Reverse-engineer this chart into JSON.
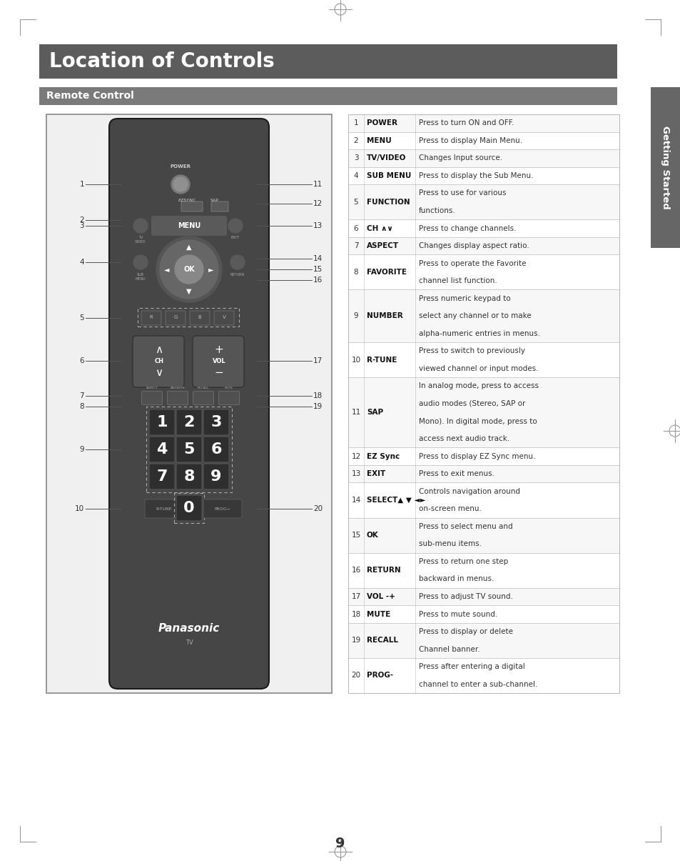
{
  "title": "Location of Controls",
  "subtitle": "Remote Control",
  "title_bg": "#5c5c5c",
  "subtitle_bg": "#7a7a7a",
  "title_color": "#ffffff",
  "subtitle_color": "#ffffff",
  "page_bg": "#ffffff",
  "tab_bg": "#666666",
  "tab_text": "Getting Started",
  "table_rows": [
    [
      "1",
      "POWER",
      "Press to turn ON and OFF."
    ],
    [
      "2",
      "MENU",
      "Press to display Main Menu."
    ],
    [
      "3",
      "TV/VIDEO",
      "Changes Input source."
    ],
    [
      "4",
      "SUB MENU",
      "Press to display the Sub Menu."
    ],
    [
      "5",
      "FUNCTION",
      "Press to use for various\nfunctions."
    ],
    [
      "6",
      "CH ∧∨",
      "Press to change channels."
    ],
    [
      "7",
      "ASPECT",
      "Changes display aspect ratio."
    ],
    [
      "8",
      "FAVORITE",
      "Press to operate the Favorite\nchannel list function."
    ],
    [
      "9",
      "NUMBER",
      "Press numeric keypad to\nselect any channel or to make\nalpha-numeric entries in menus."
    ],
    [
      "10",
      "R-TUNE",
      "Press to switch to previously\nviewed channel or input modes."
    ],
    [
      "11",
      "SAP",
      "In analog mode, press to access\naudio modes (Stereo, SAP or\nMono). In digital mode, press to\naccess next audio track."
    ],
    [
      "12",
      "EZ Sync",
      "Press to display EZ Sync menu."
    ],
    [
      "13",
      "EXIT",
      "Press to exit menus."
    ],
    [
      "14",
      "SELECT▲ ▼ ◄►",
      "Controls navigation around\non-screen menu."
    ],
    [
      "15",
      "OK",
      "Press to select menu and\nsub-menu items."
    ],
    [
      "16",
      "RETURN",
      "Press to return one step\nbackward in menus."
    ],
    [
      "17",
      "VOL -+",
      "Press to adjust TV sound."
    ],
    [
      "18",
      "MUTE",
      "Press to mute sound."
    ],
    [
      "19",
      "RECALL",
      "Press to display or delete\nChannel banner."
    ],
    [
      "20",
      "PROG-",
      "Press after entering a digital\nchannel to enter a sub-channel."
    ]
  ],
  "border_color": "#bbbbbb",
  "page_number": "9"
}
